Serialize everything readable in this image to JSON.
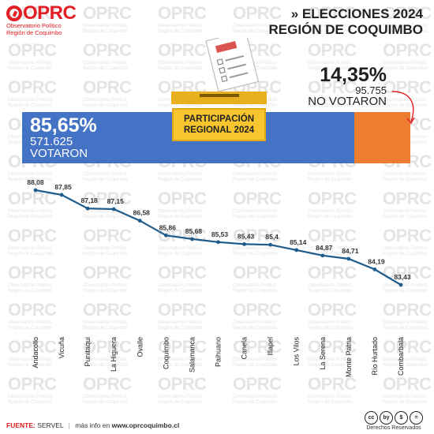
{
  "logo": {
    "name": "OPRC",
    "subtitle_line1": "Observatorio Político",
    "subtitle_line2": "Región de Coquimbo"
  },
  "watermark_text": "OPRC",
  "watermark_sub1": "Observatorio Político",
  "watermark_sub2": "Región de Coquimbo",
  "header": {
    "line1": "» ELECCIONES 2024",
    "line2": "REGIÓN DE COQUIMBO"
  },
  "ballot_box": {
    "line1": "PARTICIPACIÓN",
    "line2": "REGIONAL 2024"
  },
  "turnout": {
    "voted_pct_label": "85,65%",
    "voted_count": "571.625",
    "voted_label": "VOTARON",
    "not_voted_pct_label": "14,35%",
    "not_voted_count": "95.755",
    "not_voted_label": "NO VOTARON",
    "voted_share": 85.65,
    "not_voted_share": 14.35,
    "colors": {
      "voted": "#4472c4",
      "not_voted": "#ed7d31"
    }
  },
  "chart_data": {
    "type": "line",
    "categories": [
      "Andacollo",
      "Vicuña",
      "Punitaqui",
      "La Higuera",
      "Ovalle",
      "Coquimbo",
      "Salamanca",
      "Paihuano",
      "Canela",
      "Illapel",
      "Los Vilos",
      "La Serena",
      "Monte Patria",
      "Río Hurtado",
      "Combarbalá"
    ],
    "values": [
      88.08,
      87.85,
      87.18,
      87.15,
      86.58,
      85.86,
      85.68,
      85.53,
      85.43,
      85.4,
      85.14,
      84.87,
      84.71,
      84.19,
      83.43
    ],
    "value_labels": [
      "88,08",
      "87,85",
      "87,18",
      "87,15",
      "86,58",
      "85,86",
      "85,68",
      "85,53",
      "85,43",
      "85,4",
      "85,14",
      "84,87",
      "84,71",
      "84,19",
      "83,43"
    ],
    "line_color": "#1f5c8b",
    "grid": false,
    "legend": false
  },
  "footer": {
    "source_label": "FUENTE:",
    "source_value": "SERVEL",
    "separator": "|",
    "more_info": "más info en",
    "url": "www.oprcoquimbo.cl",
    "license": "Derechos Reservados",
    "license_icons": [
      "cc",
      "by",
      "$",
      "="
    ]
  }
}
